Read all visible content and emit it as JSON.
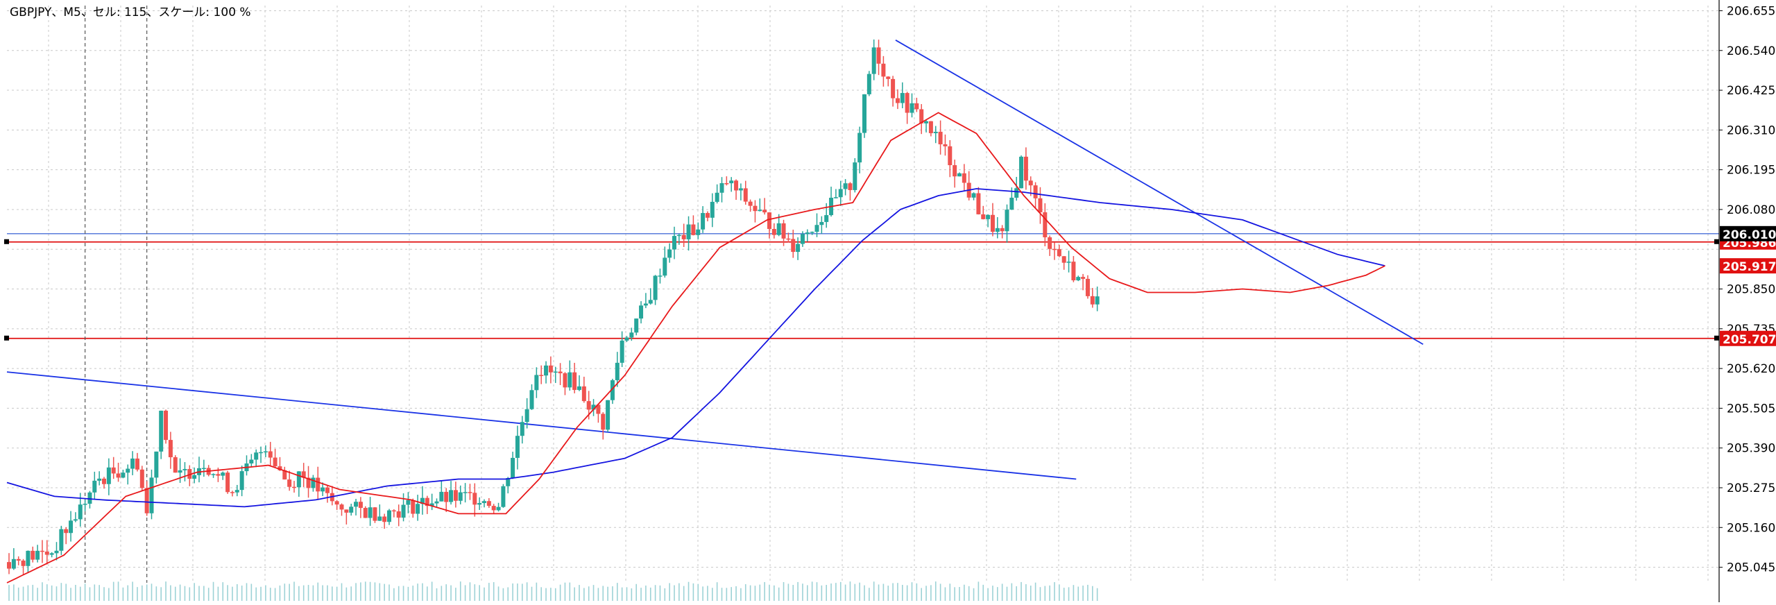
{
  "header": {
    "info": "GBPJPY、M5、セル: 115、スケール: 100 %"
  },
  "colors": {
    "background": "#ffffff",
    "grid": "#c8c8c8",
    "axis": "#000000",
    "bull_candle": "#26a69a",
    "bear_candle": "#ef5350",
    "ma_fast": "#e8191b",
    "ma_slow": "#1414e0",
    "trendline": "#1a33e6",
    "support_line": "#e01010",
    "price_line": "#4a6fd8",
    "volume_tick": "#9cd2d6"
  },
  "chart_data": {
    "type": "candlestick",
    "symbol": "GBPJPY",
    "timeframe": "M5",
    "grid": true,
    "ylim": [
      205.0,
      206.67
    ],
    "y_ticks": [
      "206.655",
      "206.540",
      "206.425",
      "206.310",
      "206.195",
      "206.080",
      "205.965",
      "205.850",
      "205.735",
      "205.620",
      "205.505",
      "205.390",
      "205.275",
      "205.160",
      "205.045"
    ],
    "current_price": 206.01,
    "current_price_label": "206.010",
    "horizontal_lines": [
      {
        "price": 205.986,
        "label": "205.986",
        "color": "#e01010"
      },
      {
        "price": 205.707,
        "label": "205.707",
        "color": "#e01010"
      }
    ],
    "indicator_labels": [
      {
        "price": 205.917,
        "label": "205.917",
        "color": "#e01010"
      }
    ],
    "candle_count": 230,
    "price_path": [
      [
        0,
        205.06
      ],
      [
        10,
        205.09
      ],
      [
        20,
        205.3
      ],
      [
        28,
        205.35
      ],
      [
        30,
        205.2
      ],
      [
        33,
        205.5
      ],
      [
        36,
        205.3
      ],
      [
        42,
        205.35
      ],
      [
        48,
        205.27
      ],
      [
        55,
        205.4
      ],
      [
        60,
        205.28
      ],
      [
        62,
        205.32
      ],
      [
        70,
        205.22
      ],
      [
        80,
        205.2
      ],
      [
        90,
        205.24
      ],
      [
        100,
        205.25
      ],
      [
        104,
        205.22
      ],
      [
        112,
        205.62
      ],
      [
        120,
        205.58
      ],
      [
        126,
        205.46
      ],
      [
        130,
        205.7
      ],
      [
        135,
        205.8
      ],
      [
        140,
        205.98
      ],
      [
        146,
        206.03
      ],
      [
        152,
        206.16
      ],
      [
        158,
        206.08
      ],
      [
        166,
        205.98
      ],
      [
        172,
        206.06
      ],
      [
        178,
        206.15
      ],
      [
        183,
        206.55
      ],
      [
        187,
        206.42
      ],
      [
        194,
        206.33
      ],
      [
        200,
        206.2
      ],
      [
        206,
        206.06
      ],
      [
        210,
        206.0
      ],
      [
        214,
        206.22
      ],
      [
        220,
        205.98
      ],
      [
        226,
        205.88
      ],
      [
        232,
        205.78
      ],
      [
        238,
        205.82
      ],
      [
        244,
        205.92
      ],
      [
        250,
        205.84
      ],
      [
        256,
        205.76
      ],
      [
        262,
        205.8
      ],
      [
        266,
        205.84
      ],
      [
        272,
        205.86
      ],
      [
        278,
        205.93
      ],
      [
        284,
        205.98
      ],
      [
        290,
        206.01
      ]
    ],
    "ma_fast_path": [
      [
        0,
        205.0
      ],
      [
        12,
        205.08
      ],
      [
        25,
        205.25
      ],
      [
        40,
        205.32
      ],
      [
        55,
        205.34
      ],
      [
        70,
        205.27
      ],
      [
        85,
        205.24
      ],
      [
        95,
        205.2
      ],
      [
        105,
        205.2
      ],
      [
        112,
        205.3
      ],
      [
        120,
        205.45
      ],
      [
        130,
        205.6
      ],
      [
        140,
        205.8
      ],
      [
        150,
        205.97
      ],
      [
        160,
        206.05
      ],
      [
        170,
        206.08
      ],
      [
        178,
        206.1
      ],
      [
        186,
        206.28
      ],
      [
        196,
        206.36
      ],
      [
        204,
        206.3
      ],
      [
        214,
        206.12
      ],
      [
        224,
        205.97
      ],
      [
        232,
        205.88
      ],
      [
        240,
        205.84
      ],
      [
        250,
        205.84
      ],
      [
        260,
        205.85
      ],
      [
        270,
        205.84
      ],
      [
        278,
        205.86
      ],
      [
        286,
        205.89
      ],
      [
        290,
        205.917
      ]
    ],
    "ma_slow_path": [
      [
        0,
        205.29
      ],
      [
        10,
        205.25
      ],
      [
        20,
        205.24
      ],
      [
        35,
        205.23
      ],
      [
        50,
        205.22
      ],
      [
        65,
        205.24
      ],
      [
        80,
        205.28
      ],
      [
        95,
        205.3
      ],
      [
        105,
        205.3
      ],
      [
        115,
        205.32
      ],
      [
        130,
        205.36
      ],
      [
        140,
        205.42
      ],
      [
        150,
        205.55
      ],
      [
        160,
        205.7
      ],
      [
        170,
        205.85
      ],
      [
        180,
        205.99
      ],
      [
        188,
        206.08
      ],
      [
        196,
        206.12
      ],
      [
        204,
        206.14
      ],
      [
        214,
        206.13
      ],
      [
        230,
        206.1
      ],
      [
        245,
        206.08
      ],
      [
        260,
        206.05
      ],
      [
        270,
        206.0
      ],
      [
        280,
        205.95
      ],
      [
        290,
        205.917
      ]
    ],
    "trendlines": [
      {
        "from": [
          0,
          205.61
        ],
        "to": [
          225,
          205.3
        ]
      },
      {
        "from": [
          187,
          206.57
        ],
        "to": [
          298,
          205.69
        ]
      }
    ],
    "vertical_markers": [
      16,
      29
    ]
  }
}
